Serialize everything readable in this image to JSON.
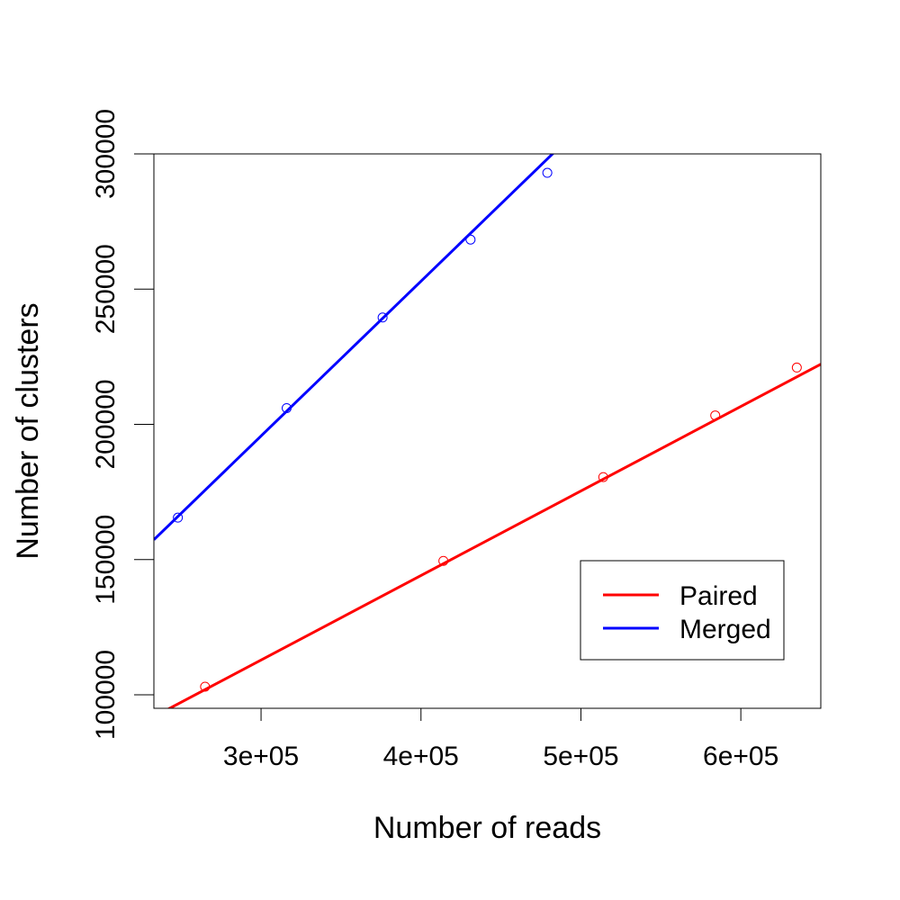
{
  "chart_data": {
    "type": "scatter",
    "title": "",
    "xlabel": "Number of reads",
    "ylabel": "Number of clusters",
    "xlim": [
      233000,
      650000
    ],
    "ylim": [
      95000,
      300000
    ],
    "x_ticks": [
      300000,
      400000,
      500000,
      600000
    ],
    "x_tick_labels": [
      "3e+05",
      "4e+05",
      "5e+05",
      "6e+05"
    ],
    "y_ticks": [
      100000,
      150000,
      200000,
      250000,
      300000
    ],
    "y_tick_labels": [
      "100000",
      "150000",
      "200000",
      "250000",
      "300000"
    ],
    "grid": false,
    "legend_position": "bottom-right",
    "series": [
      {
        "name": "Paired",
        "color": "#ff0000",
        "points": [
          [
            265000,
            103000
          ],
          [
            414000,
            149500
          ],
          [
            514000,
            180500
          ],
          [
            584000,
            203300
          ],
          [
            635000,
            221000
          ]
        ],
        "fit": {
          "slope": 0.3125,
          "intercept": 19100
        }
      },
      {
        "name": "Merged",
        "color": "#0000ff",
        "points": [
          [
            248000,
            165500
          ],
          [
            316000,
            206000
          ],
          [
            376000,
            239500
          ],
          [
            431000,
            268300
          ],
          [
            479000,
            293000
          ]
        ],
        "fit": {
          "slope": 0.5723,
          "intercept": 24000
        }
      }
    ]
  }
}
